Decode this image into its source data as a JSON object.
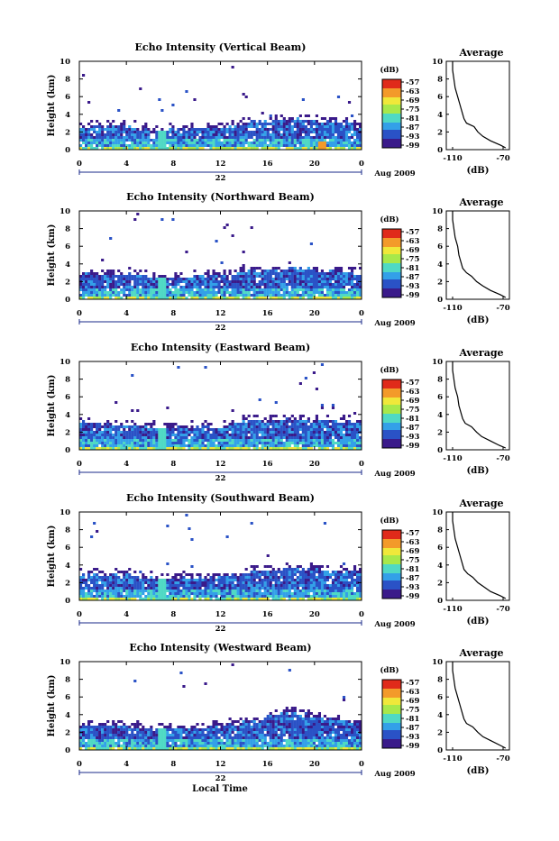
{
  "figure": {
    "x_label": "Local Time",
    "day_label": "22",
    "date_label": "Aug 2009",
    "y_label": "Height (km)",
    "colorbar_unit": "(dB)",
    "avg_title": "Average",
    "avg_xlabel": "(dB)"
  },
  "chart_data": [
    {
      "type": "heatmap",
      "title": "Echo Intensity (Vertical Beam)",
      "xlabel": "Local Time",
      "ylabel": "Height (km)",
      "x_ticks": [
        "0",
        "4",
        "8",
        "12",
        "16",
        "20",
        "0"
      ],
      "y_ticks": [
        "0",
        "2",
        "4",
        "6",
        "8",
        "10"
      ],
      "xlim": [
        0,
        24
      ],
      "ylim": [
        0,
        10
      ],
      "colorbar_ticks": [
        "-57",
        "-63",
        "-69",
        "-75",
        "-81",
        "-87",
        "-93",
        "-99"
      ],
      "colorbar_range": [
        -99,
        -57
      ],
      "colorscale": [
        "#3a1a8a",
        "#2a52c6",
        "#33a0e8",
        "#4fd9c4",
        "#a8e84a",
        "#f0e83a",
        "#f39a2a",
        "#e02a1a"
      ],
      "echo_top_km": [
        [
          0,
          2.7
        ],
        [
          4,
          2.8
        ],
        [
          6.5,
          2.3
        ],
        [
          8,
          2.5
        ],
        [
          12,
          2.6
        ],
        [
          14,
          3.2
        ],
        [
          18,
          3.6
        ],
        [
          22,
          3.3
        ],
        [
          24,
          3.1
        ]
      ]
    },
    {
      "type": "line",
      "title": "Average",
      "xlabel": "(dB)",
      "x_ticks": [
        "-110",
        "-70"
      ],
      "xlim": [
        -115,
        -65
      ],
      "ylim": [
        0,
        10
      ],
      "y_ticks": [
        "0",
        "2",
        "4",
        "6",
        "8",
        "10"
      ],
      "x": [
        -68,
        -72,
        -80,
        -86,
        -90,
        -93,
        -99,
        -101,
        -102,
        -104,
        -106,
        -107,
        -108,
        -109,
        -110,
        -110
      ],
      "y": [
        0.2,
        0.5,
        1.0,
        1.5,
        2.0,
        2.6,
        3.0,
        3.5,
        4.0,
        5.0,
        6.0,
        6.5,
        7.0,
        8.0,
        9.0,
        10.0
      ]
    },
    {
      "type": "heatmap",
      "title": "Echo Intensity (Northward Beam)",
      "xlabel": "Local Time",
      "ylabel": "Height (km)",
      "x_ticks": [
        "0",
        "4",
        "8",
        "12",
        "16",
        "20",
        "0"
      ],
      "y_ticks": [
        "0",
        "2",
        "4",
        "6",
        "8",
        "10"
      ],
      "xlim": [
        0,
        24
      ],
      "ylim": [
        0,
        10
      ],
      "colorbar_ticks": [
        "-57",
        "-63",
        "-69",
        "-75",
        "-81",
        "-87",
        "-93",
        "-99"
      ],
      "colorbar_range": [
        -99,
        -57
      ],
      "echo_top_km": [
        [
          0,
          3.0
        ],
        [
          4,
          3.0
        ],
        [
          7,
          2.6
        ],
        [
          12,
          2.8
        ],
        [
          14,
          3.3
        ],
        [
          18,
          3.7
        ],
        [
          22,
          3.3
        ],
        [
          24,
          3.2
        ]
      ]
    },
    {
      "type": "line",
      "title": "Average",
      "xlabel": "(dB)",
      "x_ticks": [
        "-110",
        "-70"
      ],
      "xlim": [
        -115,
        -65
      ],
      "ylim": [
        0,
        10
      ],
      "y_ticks": [
        "0",
        "2",
        "4",
        "6",
        "8",
        "10"
      ],
      "x": [
        -68,
        -72,
        -80,
        -86,
        -91,
        -95,
        -99,
        -102,
        -103,
        -105,
        -106,
        -107,
        -108,
        -109,
        -110,
        -110
      ],
      "y": [
        0.2,
        0.5,
        1.0,
        1.5,
        2.0,
        2.6,
        3.0,
        3.5,
        4.0,
        5.0,
        6.0,
        6.5,
        7.0,
        8.0,
        9.0,
        10.0
      ]
    },
    {
      "type": "heatmap",
      "title": "Echo Intensity (Eastward Beam)",
      "xlabel": "Local Time",
      "ylabel": "Height (km)",
      "x_ticks": [
        "0",
        "4",
        "8",
        "12",
        "16",
        "20",
        "0"
      ],
      "y_ticks": [
        "0",
        "2",
        "4",
        "6",
        "8",
        "10"
      ],
      "xlim": [
        0,
        24
      ],
      "ylim": [
        0,
        10
      ],
      "colorbar_ticks": [
        "-57",
        "-63",
        "-69",
        "-75",
        "-81",
        "-87",
        "-93",
        "-99"
      ],
      "colorbar_range": [
        -99,
        -57
      ],
      "echo_top_km": [
        [
          0,
          3.2
        ],
        [
          4,
          2.9
        ],
        [
          7,
          2.7
        ],
        [
          12,
          2.8
        ],
        [
          14,
          3.4
        ],
        [
          18,
          3.6
        ],
        [
          22,
          3.4
        ],
        [
          24,
          3.2
        ]
      ]
    },
    {
      "type": "line",
      "title": "Average",
      "xlabel": "(dB)",
      "x_ticks": [
        "-110",
        "-70"
      ],
      "xlim": [
        -115,
        -65
      ],
      "ylim": [
        0,
        10
      ],
      "y_ticks": [
        "0",
        "2",
        "4",
        "6",
        "8",
        "10"
      ],
      "x": [
        -68,
        -73,
        -80,
        -87,
        -91,
        -95,
        -100,
        -102,
        -103,
        -105,
        -106,
        -107,
        -108,
        -109,
        -110,
        -110
      ],
      "y": [
        0.2,
        0.5,
        1.0,
        1.5,
        2.0,
        2.6,
        3.0,
        3.5,
        4.0,
        5.0,
        6.0,
        6.5,
        7.0,
        8.0,
        9.0,
        10.0
      ]
    },
    {
      "type": "heatmap",
      "title": "Echo Intensity (Southward Beam)",
      "xlabel": "Local Time",
      "ylabel": "Height (km)",
      "x_ticks": [
        "0",
        "4",
        "8",
        "12",
        "16",
        "20",
        "0"
      ],
      "y_ticks": [
        "0",
        "2",
        "4",
        "6",
        "8",
        "10"
      ],
      "xlim": [
        0,
        24
      ],
      "ylim": [
        0,
        10
      ],
      "colorbar_ticks": [
        "-57",
        "-63",
        "-69",
        "-75",
        "-81",
        "-87",
        "-93",
        "-99"
      ],
      "colorbar_range": [
        -99,
        -57
      ],
      "echo_top_km": [
        [
          0,
          3.1
        ],
        [
          4,
          3.0
        ],
        [
          7,
          2.6
        ],
        [
          12,
          2.8
        ],
        [
          14,
          3.3
        ],
        [
          18,
          3.8
        ],
        [
          22,
          3.4
        ],
        [
          24,
          3.3
        ]
      ]
    },
    {
      "type": "line",
      "title": "Average",
      "xlabel": "(dB)",
      "x_ticks": [
        "-110",
        "-70"
      ],
      "xlim": [
        -115,
        -65
      ],
      "ylim": [
        0,
        10
      ],
      "y_ticks": [
        "0",
        "2",
        "4",
        "6",
        "8",
        "10"
      ],
      "x": [
        -68,
        -72,
        -80,
        -85,
        -90,
        -94,
        -98,
        -101,
        -102,
        -104,
        -106,
        -107,
        -108,
        -109,
        -110,
        -110
      ],
      "y": [
        0.2,
        0.5,
        1.0,
        1.5,
        2.0,
        2.6,
        3.0,
        3.5,
        4.0,
        5.0,
        6.0,
        6.5,
        7.0,
        8.0,
        9.0,
        10.0
      ]
    },
    {
      "type": "heatmap",
      "title": "Echo Intensity (Westward Beam)",
      "xlabel": "Local Time",
      "ylabel": "Height (km)",
      "x_ticks": [
        "0",
        "4",
        "8",
        "12",
        "16",
        "20",
        "0"
      ],
      "y_ticks": [
        "0",
        "2",
        "4",
        "6",
        "8",
        "10"
      ],
      "xlim": [
        0,
        24
      ],
      "ylim": [
        0,
        10
      ],
      "colorbar_ticks": [
        "-57",
        "-63",
        "-69",
        "-75",
        "-81",
        "-87",
        "-93",
        "-99"
      ],
      "colorbar_range": [
        -99,
        -57
      ],
      "echo_top_km": [
        [
          0,
          2.9
        ],
        [
          4,
          2.8
        ],
        [
          7,
          2.5
        ],
        [
          12,
          2.7
        ],
        [
          14,
          3.3
        ],
        [
          18,
          4.4
        ],
        [
          22,
          3.5
        ],
        [
          24,
          3.3
        ]
      ]
    },
    {
      "type": "line",
      "title": "Average",
      "xlabel": "(dB)",
      "x_ticks": [
        "-110",
        "-70"
      ],
      "xlim": [
        -115,
        -65
      ],
      "ylim": [
        0,
        10
      ],
      "y_ticks": [
        "0",
        "2",
        "4",
        "6",
        "8",
        "10"
      ],
      "x": [
        -68,
        -72,
        -79,
        -86,
        -90,
        -94,
        -99,
        -101,
        -102,
        -104,
        -106,
        -107,
        -108,
        -109,
        -110,
        -110
      ],
      "y": [
        0.2,
        0.5,
        1.0,
        1.5,
        2.0,
        2.6,
        3.0,
        3.5,
        4.0,
        5.0,
        6.0,
        6.5,
        7.0,
        8.0,
        9.0,
        10.0
      ]
    }
  ]
}
